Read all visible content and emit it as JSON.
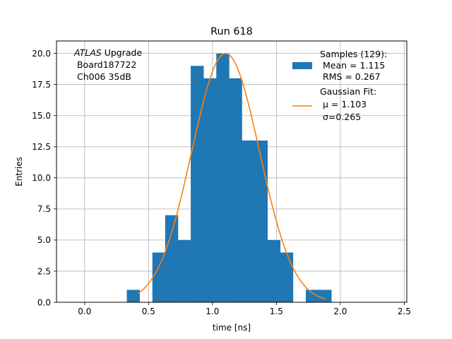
{
  "chart_data": {
    "type": "bar",
    "title": "Run 618",
    "xlabel": "time [ns]",
    "ylabel": "Entries",
    "xlim": [
      -0.22,
      2.52
    ],
    "ylim": [
      0,
      21
    ],
    "grid": true,
    "xticks": [
      {
        "value": 0.0,
        "label": "0.0"
      },
      {
        "value": 0.5,
        "label": "0.5"
      },
      {
        "value": 1.0,
        "label": "1.0"
      },
      {
        "value": 1.5,
        "label": "1.5"
      },
      {
        "value": 2.0,
        "label": "2.0"
      },
      {
        "value": 2.5,
        "label": "2.5"
      }
    ],
    "yticks": [
      {
        "value": 0.0,
        "label": "0.0"
      },
      {
        "value": 2.5,
        "label": "2.5"
      },
      {
        "value": 5.0,
        "label": "5.0"
      },
      {
        "value": 7.5,
        "label": "7.5"
      },
      {
        "value": 10.0,
        "label": "10.0"
      },
      {
        "value": 12.5,
        "label": "12.5"
      },
      {
        "value": 15.0,
        "label": "15.0"
      },
      {
        "value": 17.5,
        "label": "17.5"
      },
      {
        "value": 20.0,
        "label": "20.0"
      }
    ],
    "histogram": {
      "bin_edges": [
        0.33,
        0.43,
        0.53,
        0.63,
        0.73,
        0.83,
        0.93,
        1.03,
        1.13,
        1.23,
        1.33,
        1.43,
        1.53,
        1.63,
        1.73,
        1.83,
        1.93
      ],
      "counts": [
        1,
        0,
        4,
        7,
        5,
        19,
        18,
        20,
        18,
        13,
        13,
        5,
        4,
        0,
        1,
        1
      ],
      "color": "#1f77b4"
    },
    "fit_curve": {
      "type": "gaussian",
      "amplitude": 20.0,
      "mu": 1.103,
      "sigma": 0.265,
      "x_range": [
        0.42,
        1.88
      ],
      "color": "#ff7f0e"
    },
    "legend": {
      "placement": "top-right",
      "entries": [
        {
          "lines": [
            "Samples (129):",
            " Mean = 1.115",
            " RMS = 0.267"
          ],
          "color": "#1f77b4",
          "marker": "patch"
        },
        {
          "lines": [
            "Gaussian Fit:",
            " μ = 1.103",
            " σ=0.265"
          ],
          "color": "#ff7f0e",
          "marker": "line"
        }
      ]
    },
    "annotation": {
      "italic_part": "ATLAS",
      "rest": " Upgrade",
      "lines": [
        " Board187722",
        " Ch006 35dB"
      ]
    }
  }
}
